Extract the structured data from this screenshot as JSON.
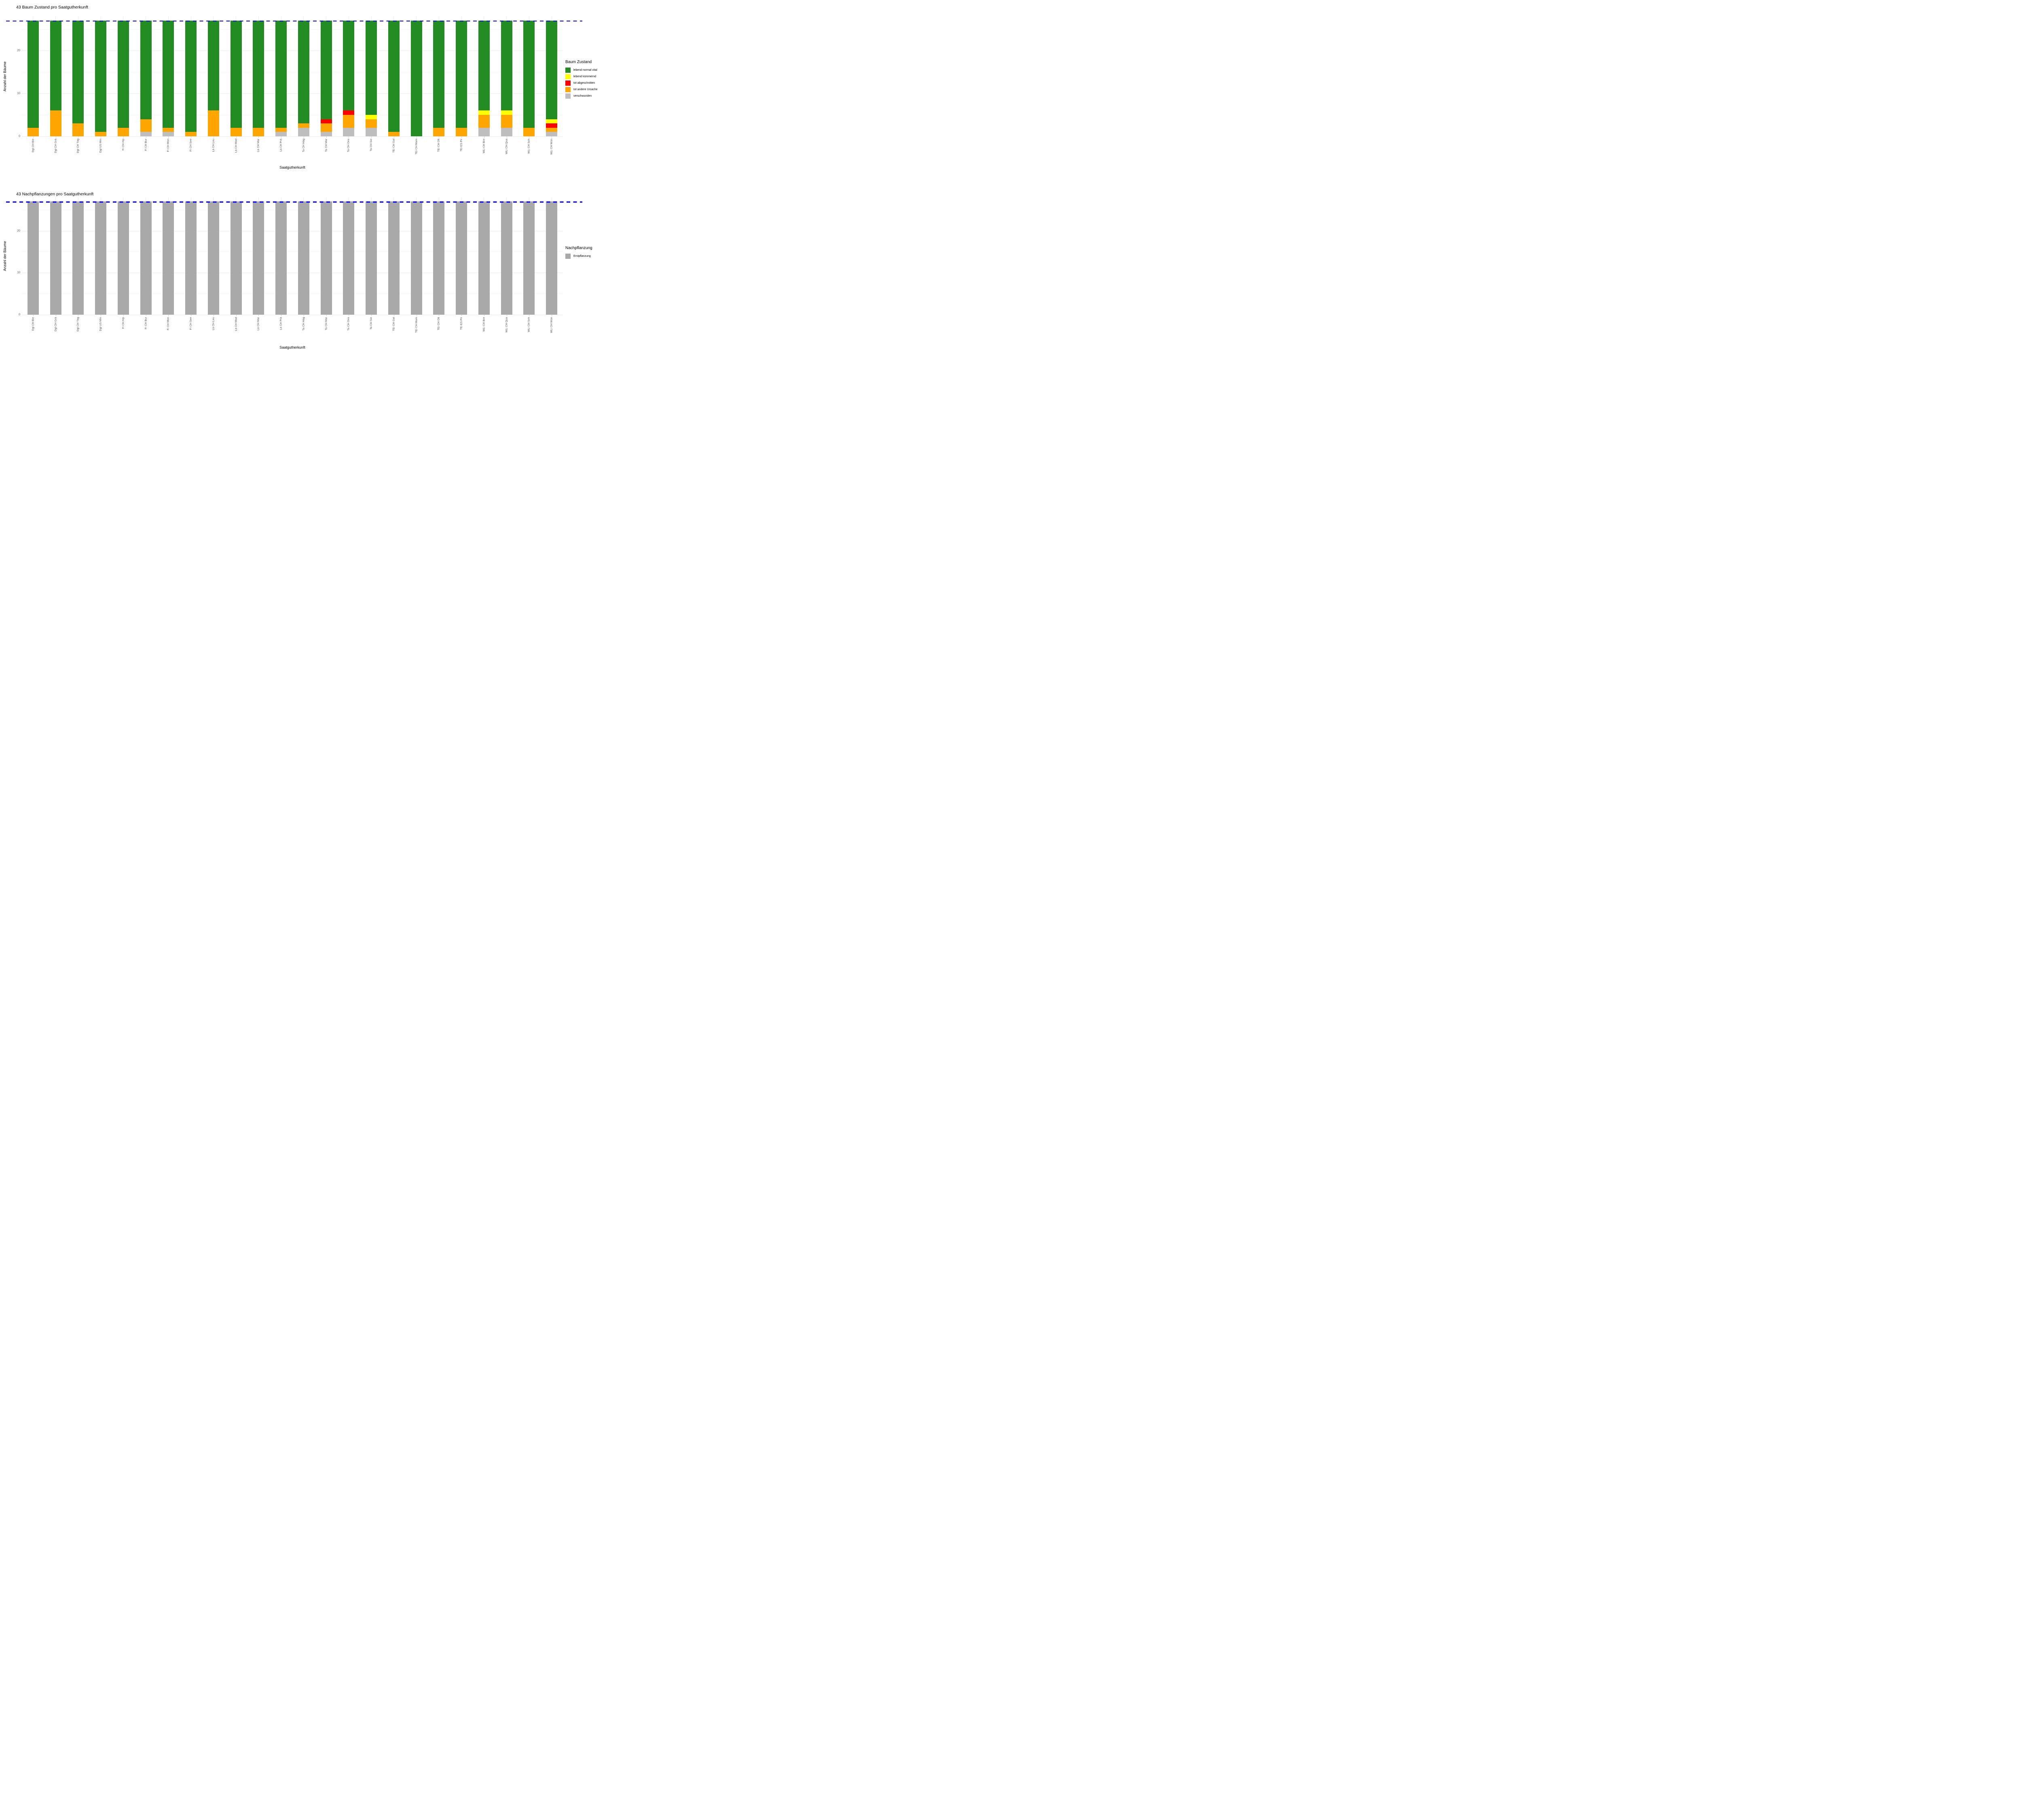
{
  "figure": {
    "background": "#FFFFFF",
    "accent_reference_color": "#0000FF"
  },
  "chart_data": [
    {
      "type": "bar",
      "stacked": true,
      "title": "43 Baum Zustand pro Saatgutherkunft",
      "xlabel": "Saatgutherkunft",
      "ylabel": "Anzahl der Bäume",
      "ylim": [
        0,
        28
      ],
      "yticks": [
        0,
        10,
        20
      ],
      "minor_gridlines": [
        5,
        15,
        25
      ],
      "grid": "on",
      "reference_line": {
        "value": 27,
        "color": "#0000FF",
        "style": "dashed"
      },
      "legend": {
        "title": "Baum Zustand",
        "position": "right",
        "entries": [
          {
            "label": "lebend normal vital",
            "color": "#228B22"
          },
          {
            "label": "lebend kümmernd",
            "color": "#FFFF00"
          },
          {
            "label": "tot abgeschnitten",
            "color": "#FF0000"
          },
          {
            "label": "tot andere Ursache",
            "color": "#FFA500"
          },
          {
            "label": "verschwunden",
            "color": "#BEBEBE"
          }
        ]
      },
      "categories": [
        "Dgl CH Bie",
        "Dgl CH Grä",
        "Dgl CH Täg",
        "Dgl US Min",
        "Fi CH Alp",
        "Fi CH Bur",
        "Fi CH Mon",
        "Fi CH See",
        "Lä CH Leu",
        "Lä CH Mad",
        "Lä CH Mar",
        "Lä CH Prä",
        "Ta CH Häg",
        "Ta CH Mar",
        "Ta CH Ons",
        "Ta CH Sie",
        "TEi CH Gal",
        "TEi CH Mam",
        "TEi CH Olt",
        "TEi ES Pir",
        "WLi CH Bre",
        "WLi CH Qua",
        "WLi CH Sch",
        "WLi CH Wün"
      ],
      "stack_order": "bottom-to-top",
      "series": [
        {
          "name": "verschwunden",
          "color": "#BEBEBE",
          "values": [
            0,
            0,
            0,
            0,
            0,
            1,
            1,
            0,
            0,
            0,
            0,
            1,
            2,
            1,
            2,
            2,
            0,
            0,
            0,
            0,
            2,
            2,
            0,
            1
          ]
        },
        {
          "name": "tot andere Ursache",
          "color": "#FFA500",
          "values": [
            2,
            6,
            3,
            1,
            2,
            3,
            1,
            1,
            6,
            2,
            2,
            1,
            1,
            2,
            3,
            2,
            1,
            0,
            2,
            2,
            3,
            3,
            2,
            1
          ]
        },
        {
          "name": "tot abgeschnitten",
          "color": "#FF0000",
          "values": [
            0,
            0,
            0,
            0,
            0,
            0,
            0,
            0,
            0,
            0,
            0,
            0,
            0,
            1,
            1,
            0,
            0,
            0,
            0,
            0,
            0,
            0,
            0,
            1
          ]
        },
        {
          "name": "lebend kümmernd",
          "color": "#FFFF00",
          "values": [
            0,
            0,
            0,
            0,
            0,
            0,
            0,
            0,
            0,
            0,
            0,
            0,
            0,
            0,
            0,
            1,
            0,
            0,
            0,
            0,
            1,
            1,
            0,
            1
          ]
        },
        {
          "name": "lebend normal vital",
          "color": "#228B22",
          "values": [
            25,
            21,
            24,
            26,
            25,
            23,
            25,
            26,
            21,
            25,
            25,
            25,
            24,
            23,
            21,
            22,
            26,
            27,
            25,
            25,
            21,
            21,
            25,
            23
          ]
        }
      ]
    },
    {
      "type": "bar",
      "stacked": true,
      "title": "43 Nachpflanzungen pro Saatgutherkunft",
      "xlabel": "Saatgutherkunft",
      "ylabel": "Anzahl der Bäume",
      "ylim": [
        0,
        28
      ],
      "yticks": [
        0,
        10,
        20
      ],
      "minor_gridlines": [
        5,
        15,
        25
      ],
      "grid": "on",
      "reference_line": {
        "value": 27,
        "color": "#0000FF",
        "style": "dashed"
      },
      "legend": {
        "title": "Nachpflanzung",
        "position": "right",
        "entries": [
          {
            "label": "Erstpflanzung",
            "color": "#A9A9A9"
          }
        ]
      },
      "categories": [
        "Dgl CH Bie",
        "Dgl CH Grä",
        "Dgl CH Täg",
        "Dgl US Min",
        "Fi CH Alp",
        "Fi CH Bur",
        "Fi CH Mon",
        "Fi CH See",
        "Lä CH Leu",
        "Lä CH Mad",
        "Lä CH Mar",
        "Lä CH Prä",
        "Ta CH Häg",
        "Ta CH Mar",
        "Ta CH Ons",
        "Ta CH Sie",
        "TEi CH Gal",
        "TEi CH Mam",
        "TEi CH Olt",
        "TEi ES Pir",
        "WLi CH Bre",
        "WLi CH Qua",
        "WLi CH Sch",
        "WLi CH Wün"
      ],
      "stack_order": "bottom-to-top",
      "series": [
        {
          "name": "Erstpflanzung",
          "color": "#A9A9A9",
          "values": [
            27,
            27,
            27,
            27,
            27,
            27,
            27,
            27,
            27,
            27,
            27,
            27,
            27,
            27,
            27,
            27,
            27,
            27,
            27,
            27,
            27,
            27,
            27,
            27
          ]
        }
      ]
    }
  ]
}
